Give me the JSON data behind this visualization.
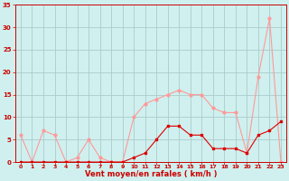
{
  "title": "",
  "xlabel": "Vent moyen/en rafales ( km/h )",
  "ylabel": "",
  "bg_color": "#cff0ee",
  "grid_color": "#aacccc",
  "xlim": [
    -0.5,
    23.5
  ],
  "ylim": [
    0,
    35
  ],
  "yticks": [
    0,
    5,
    10,
    15,
    20,
    25,
    30,
    35
  ],
  "xticks": [
    0,
    1,
    2,
    3,
    4,
    5,
    6,
    7,
    8,
    9,
    10,
    11,
    12,
    13,
    14,
    15,
    16,
    17,
    18,
    19,
    20,
    21,
    22,
    23
  ],
  "line_avg_color": "#dd0000",
  "line_gust_color": "#ff9999",
  "avg_x": [
    0,
    1,
    2,
    3,
    4,
    5,
    6,
    7,
    8,
    9,
    10,
    11,
    12,
    13,
    14,
    15,
    16,
    17,
    18,
    19,
    20,
    21,
    22,
    23
  ],
  "avg_y": [
    0,
    0,
    0,
    0,
    0,
    0,
    0,
    0,
    0,
    0,
    1,
    2,
    5,
    8,
    8,
    6,
    6,
    3,
    3,
    3,
    2,
    6,
    7,
    9
  ],
  "gust_x": [
    0,
    1,
    2,
    3,
    4,
    5,
    6,
    7,
    8,
    9,
    10,
    11,
    12,
    13,
    14,
    15,
    16,
    17,
    18,
    19,
    20,
    21,
    22,
    23
  ],
  "gust_y": [
    6,
    0,
    7,
    6,
    0,
    1,
    5,
    1,
    0,
    0,
    10,
    13,
    14,
    15,
    16,
    15,
    15,
    12,
    11,
    11,
    2,
    19,
    32,
    0
  ]
}
